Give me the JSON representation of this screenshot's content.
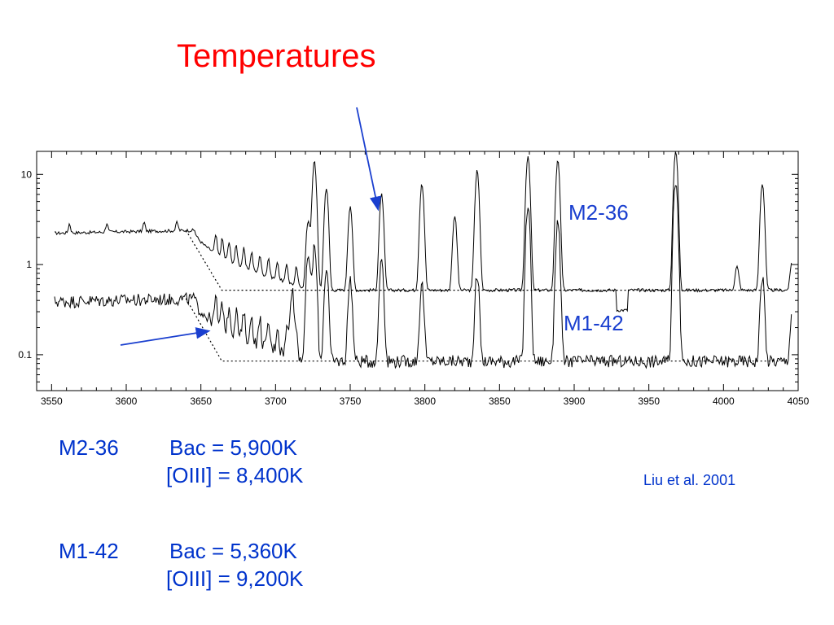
{
  "slide": {
    "title": "Temperatures",
    "citation": "Liu et al. 2001",
    "results": [
      {
        "object": "M2-36",
        "bac": "Bac = 5,900K",
        "oiii": "[OIII] = 8,400K"
      },
      {
        "object": "M1-42",
        "bac": "Bac = 5,360K",
        "oiii": "[OIII] = 9,200K"
      }
    ]
  },
  "chart_data": {
    "type": "line",
    "title": "",
    "xlabel": "",
    "ylabel": "",
    "xlim": [
      3540,
      4050
    ],
    "ylim": [
      0.04,
      18
    ],
    "yscale": "log",
    "grid": false,
    "xticks": [
      3550,
      3600,
      3650,
      3700,
      3750,
      3800,
      3850,
      3900,
      3950,
      4000,
      4050
    ],
    "xtick_labels": [
      "3550",
      "3600",
      "3650",
      "3700",
      "3750",
      "3800",
      "3850",
      "3900",
      "3950",
      "4000",
      "4050"
    ],
    "yticks": [
      0.1,
      1,
      10
    ],
    "ytick_labels": [
      "0.1",
      "1",
      "10"
    ],
    "lines": [
      3722,
      3726,
      3734,
      3750,
      3771,
      3798,
      3835,
      3869,
      3889,
      3968,
      4026
    ],
    "series": [
      {
        "name": "M2-36",
        "label": "M2-36",
        "balmer_jump_at": 3646,
        "continuum_blue": 2.4,
        "continuum_red": 0.52,
        "peaks": [
          {
            "x": 3722,
            "y": 3.0
          },
          {
            "x": 3726,
            "y": 14
          },
          {
            "x": 3734,
            "y": 7
          },
          {
            "x": 3750,
            "y": 4.5
          },
          {
            "x": 3771,
            "y": 6.0
          },
          {
            "x": 3798,
            "y": 8.0
          },
          {
            "x": 3820,
            "y": 3.5
          },
          {
            "x": 3835,
            "y": 11
          },
          {
            "x": 3869,
            "y": 16
          },
          {
            "x": 3889,
            "y": 14
          },
          {
            "x": 3968,
            "y": 18
          },
          {
            "x": 4026,
            "y": 8.0
          },
          {
            "x": 4009,
            "y": 0.95
          },
          {
            "x": 4046,
            "y": 1.1
          }
        ]
      },
      {
        "name": "M1-42",
        "label": "M1-42",
        "balmer_jump_at": 3646,
        "continuum_blue": 0.42,
        "continuum_red": 0.085,
        "peaks": [
          {
            "x": 3711,
            "y": 0.55
          },
          {
            "x": 3722,
            "y": 1.3
          },
          {
            "x": 3726,
            "y": 1.6
          },
          {
            "x": 3734,
            "y": 0.9
          },
          {
            "x": 3750,
            "y": 0.7
          },
          {
            "x": 3771,
            "y": 1.2
          },
          {
            "x": 3798,
            "y": 0.6
          },
          {
            "x": 3835,
            "y": 0.8
          },
          {
            "x": 3869,
            "y": 4.5
          },
          {
            "x": 3889,
            "y": 3.0
          },
          {
            "x": 3968,
            "y": 9.0
          },
          {
            "x": 4026,
            "y": 0.75
          },
          {
            "x": 4046,
            "y": 0.3
          }
        ]
      }
    ],
    "fit_lines": [
      {
        "series": "M2-36",
        "style": "dotted",
        "level_red": 0.52
      },
      {
        "series": "M1-42",
        "style": "dotted",
        "level_red": 0.085
      }
    ],
    "annotations": [
      {
        "type": "arrow",
        "color": "#1a3fcf",
        "points_to": {
          "x": 3771,
          "y": 6.0
        }
      },
      {
        "type": "arrow",
        "color": "#1a3fcf",
        "points_to": {
          "x": 3650,
          "y": 0.17
        }
      }
    ]
  }
}
